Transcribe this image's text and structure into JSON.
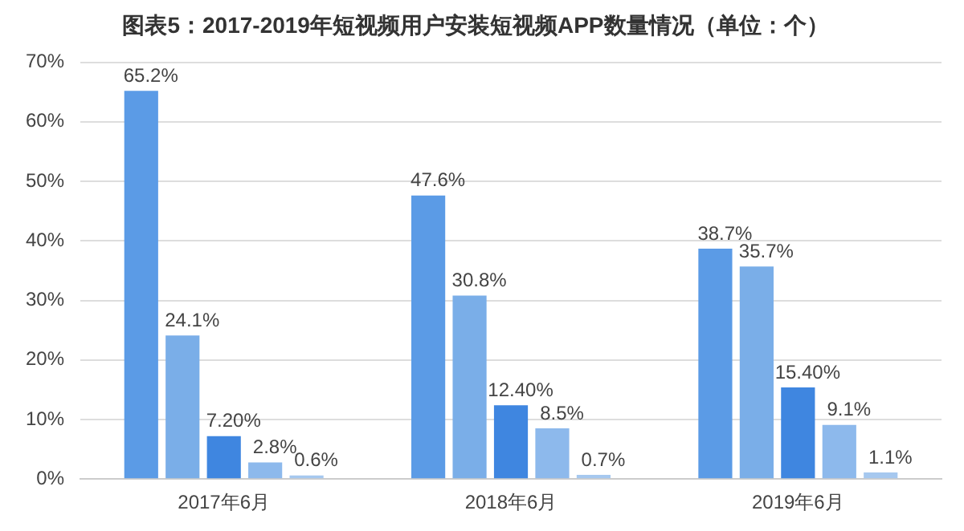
{
  "chart_data": {
    "type": "bar",
    "title": "图表5：2017-2019年短视频用户安装短视频APP数量情况（单位：个）",
    "categories": [
      "2017年6月",
      "2018年6月",
      "2019年6月"
    ],
    "series": [
      {
        "color": "#5b9be6",
        "values": [
          65.2,
          47.6,
          38.7
        ],
        "value_labels": [
          "65.2%",
          "47.6%",
          "38.7%"
        ]
      },
      {
        "color": "#7aaee8",
        "values": [
          24.1,
          30.8,
          35.7
        ],
        "value_labels": [
          "24.1%",
          "30.8%",
          "35.7%"
        ]
      },
      {
        "color": "#3f86e0",
        "values": [
          7.2,
          12.4,
          15.4
        ],
        "value_labels": [
          "7.20%",
          "12.40%",
          "15.40%"
        ]
      },
      {
        "color": "#8db9ec",
        "values": [
          2.8,
          8.5,
          9.1
        ],
        "value_labels": [
          "2.8%",
          "8.5%",
          "9.1%"
        ]
      },
      {
        "color": "#a6c8ef",
        "values": [
          0.6,
          0.7,
          1.1
        ],
        "value_labels": [
          "0.6%",
          "0.7%",
          "1.1%"
        ]
      }
    ],
    "ylim": [
      0,
      70
    ],
    "yticks": [
      {
        "value": 0,
        "label": "0%"
      },
      {
        "value": 10,
        "label": "10%"
      },
      {
        "value": 20,
        "label": "20%"
      },
      {
        "value": 30,
        "label": "30%"
      },
      {
        "value": 40,
        "label": "40%"
      },
      {
        "value": 50,
        "label": "50%"
      },
      {
        "value": 60,
        "label": "60%"
      },
      {
        "value": 70,
        "label": "70%"
      }
    ],
    "grid": "y",
    "legend": false
  }
}
